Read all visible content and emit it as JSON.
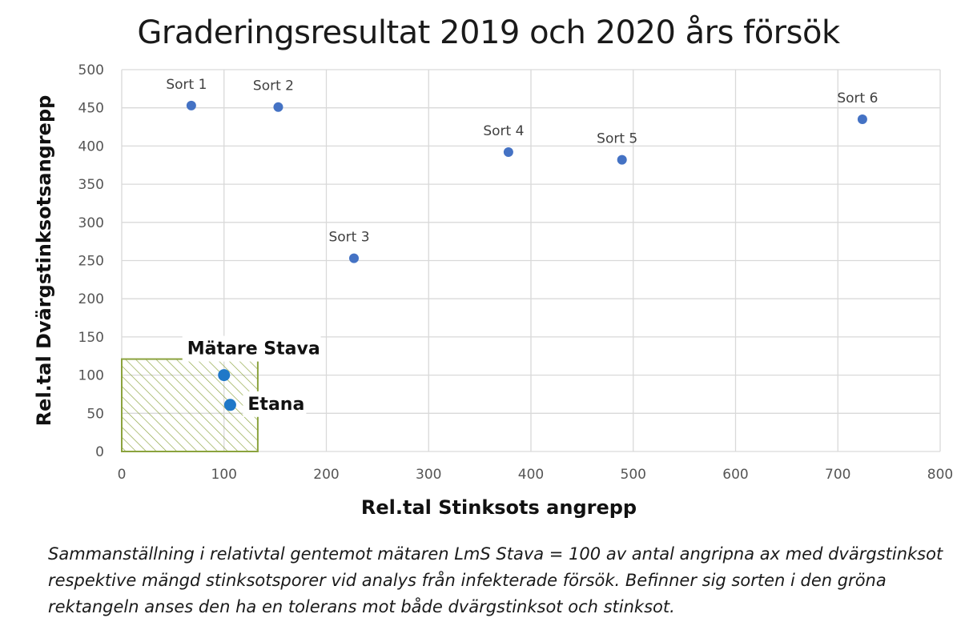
{
  "chart_data": {
    "type": "scatter",
    "title": "Graderingsresultat 2019 och 2020 års försök",
    "xlabel": "Rel.tal Stinksots angrepp",
    "ylabel": "Rel.tal Dvärgstinksotsangrepp",
    "xlim": [
      0,
      800
    ],
    "ylim": [
      0,
      500
    ],
    "x_ticks": [
      "0",
      "100",
      "200",
      "300",
      "400",
      "500",
      "600",
      "700",
      "800"
    ],
    "y_ticks": [
      "0",
      "50",
      "100",
      "150",
      "200",
      "250",
      "300",
      "350",
      "400",
      "450",
      "500"
    ],
    "grid": true,
    "points": [
      {
        "label": "Sort 1",
        "x": 68,
        "y": 453,
        "emphasis": false
      },
      {
        "label": "Sort 2",
        "x": 153,
        "y": 451,
        "emphasis": false
      },
      {
        "label": "Sort 3",
        "x": 227,
        "y": 253,
        "emphasis": false
      },
      {
        "label": "Sort 4",
        "x": 378,
        "y": 392,
        "emphasis": false
      },
      {
        "label": "Sort 5",
        "x": 489,
        "y": 382,
        "emphasis": false
      },
      {
        "label": "Sort 6",
        "x": 724,
        "y": 435,
        "emphasis": false
      },
      {
        "label": "Mätare Stava",
        "x": 100,
        "y": 100,
        "emphasis": true
      },
      {
        "label": "Etana",
        "x": 106,
        "y": 61,
        "emphasis": true
      }
    ],
    "tolerance_region": {
      "x": [
        0,
        133
      ],
      "y": [
        0,
        121
      ]
    }
  },
  "colors": {
    "point": "#4472C4",
    "emphasis_point": "#1F78C8",
    "region": "#8BA33E",
    "grid": "#D9D9D9"
  },
  "caption": "Sammanställning i relativtal gentemot mätaren LmS Stava = 100 av antal angripna ax med dvärgstinksot respektive mängd stinksotsporer vid analys från infekterade försök. Befinner sig sorten i den gröna rektangeln anses den ha en tolerans mot både dvärgstinksot och stinksot."
}
